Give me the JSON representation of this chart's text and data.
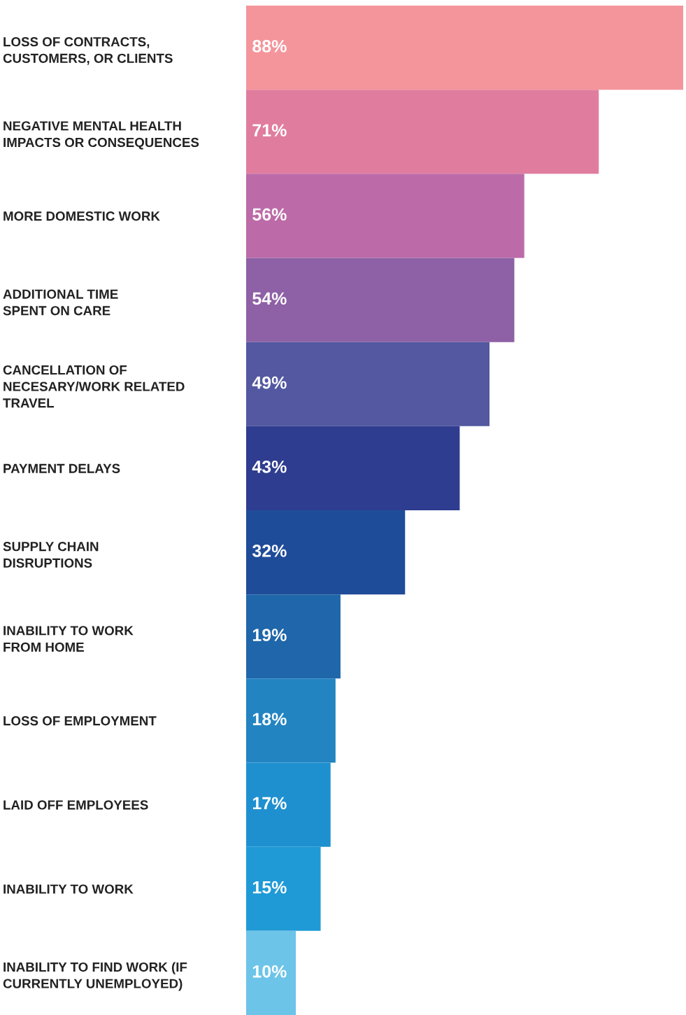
{
  "chart_data": {
    "type": "bar",
    "orientation": "horizontal",
    "categories": [
      "LOSS OF CONTRACTS,\nCUSTOMERS, OR CLIENTS",
      "NEGATIVE MENTAL HEALTH\nIMPACTS OR CONSEQUENCES",
      "MORE DOMESTIC WORK",
      "ADDITIONAL TIME\nSPENT ON CARE",
      "CANCELLATION OF\nNECESARY/WORK RELATED\nTRAVEL",
      "PAYMENT DELAYS",
      "SUPPLY CHAIN\nDISRUPTIONS",
      "INABILITY TO WORK\nFROM HOME",
      "LOSS OF EMPLOYMENT",
      "LAID OFF EMPLOYEES",
      "INABILITY TO WORK",
      "INABILITY TO FIND WORK (IF\nCURRENTLY UNEMPLOYED)"
    ],
    "values": [
      88,
      71,
      56,
      54,
      49,
      43,
      32,
      19,
      18,
      17,
      15,
      10
    ],
    "value_labels": [
      "88%",
      "71%",
      "56%",
      "54%",
      "49%",
      "43%",
      "32%",
      "19%",
      "18%",
      "17%",
      "15%",
      "10%"
    ],
    "colors": [
      "#f4959b",
      "#e07d9f",
      "#bc6aa8",
      "#8e60a5",
      "#5358a1",
      "#2e3d8f",
      "#1f4c99",
      "#1f66aa",
      "#2384c2",
      "#1f90cf",
      "#1f9ad6",
      "#6cc4e8"
    ],
    "grid": false,
    "legend": false
  }
}
